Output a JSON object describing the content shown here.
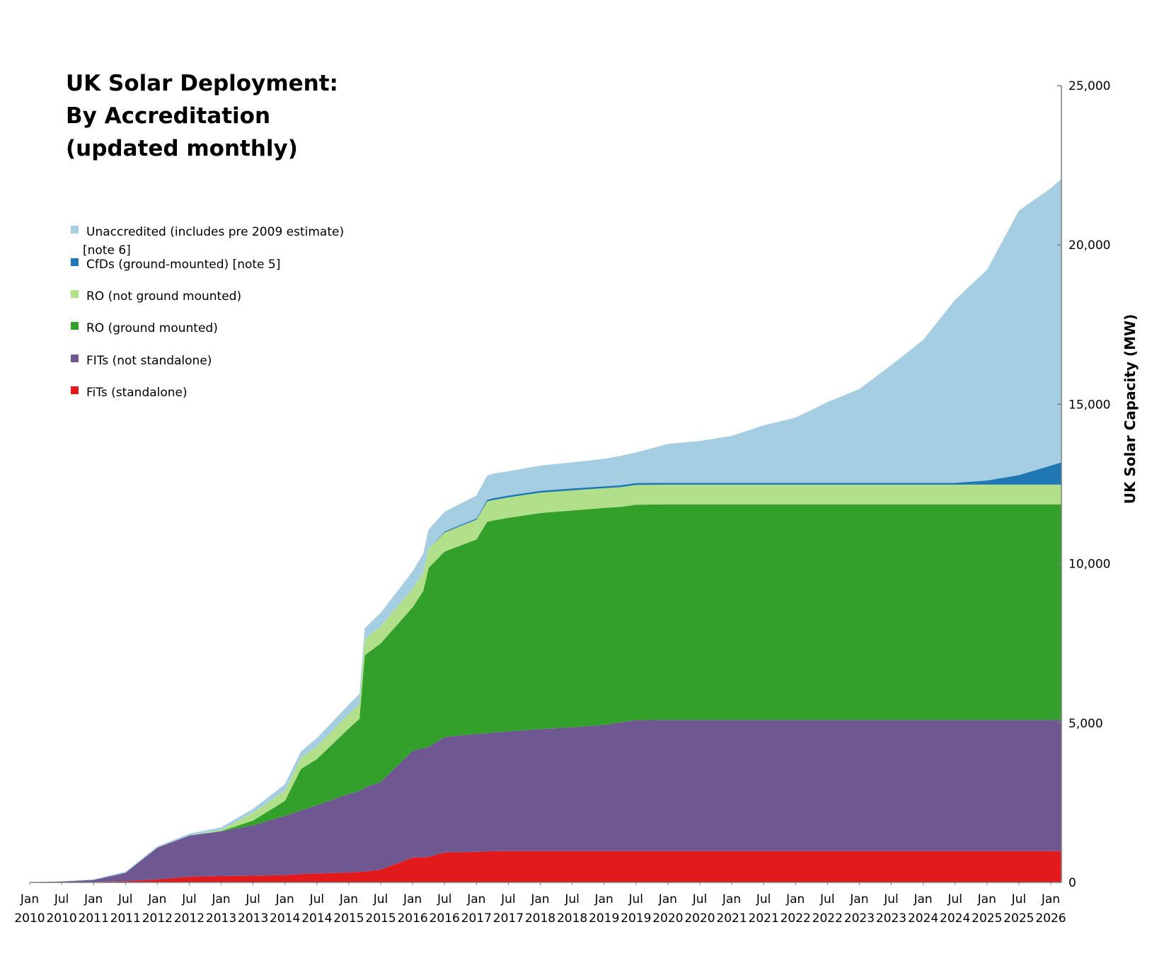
{
  "chart_data": {
    "type": "area",
    "stacked": true,
    "title": [
      "UK Solar Deployment:",
      "By Accreditation",
      "(updated monthly)"
    ],
    "ylabel": "UK Solar Capacity (MW)",
    "xlabel": "",
    "ylim": [
      0,
      25000
    ],
    "y_axis_position": "right",
    "y_ticks": [
      0,
      5000,
      10000,
      15000,
      20000,
      25000
    ],
    "y_tick_labels": [
      "0",
      "5,000",
      "10,000",
      "15,000",
      "20,000",
      "25,000"
    ],
    "x_ticks": [
      {
        "month": "Jan",
        "year": "2010"
      },
      {
        "month": "Jul",
        "year": "2010"
      },
      {
        "month": "Jan",
        "year": "2011"
      },
      {
        "month": "Jul",
        "year": "2011"
      },
      {
        "month": "Jan",
        "year": "2012"
      },
      {
        "month": "Jul",
        "year": "2012"
      },
      {
        "month": "Jan",
        "year": "2013"
      },
      {
        "month": "Jul",
        "year": "2013"
      },
      {
        "month": "Jan",
        "year": "2014"
      },
      {
        "month": "Jul",
        "year": "2014"
      },
      {
        "month": "Jan",
        "year": "2015"
      },
      {
        "month": "Jul",
        "year": "2015"
      },
      {
        "month": "Jan",
        "year": "2016"
      },
      {
        "month": "Jul",
        "year": "2016"
      },
      {
        "month": "Jan",
        "year": "2017"
      },
      {
        "month": "Jul",
        "year": "2017"
      },
      {
        "month": "Jan",
        "year": "2018"
      },
      {
        "month": "Jul",
        "year": "2018"
      },
      {
        "month": "Jan",
        "year": "2019"
      },
      {
        "month": "Jul",
        "year": "2019"
      },
      {
        "month": "Jan",
        "year": "2020"
      },
      {
        "month": "Jul",
        "year": "2020"
      },
      {
        "month": "Jan",
        "year": "2021"
      },
      {
        "month": "Jul",
        "year": "2021"
      },
      {
        "month": "Jan",
        "year": "2022"
      },
      {
        "month": "Jul",
        "year": "2022"
      },
      {
        "month": "Jan",
        "year": "2023"
      },
      {
        "month": "Jul",
        "year": "2023"
      },
      {
        "month": "Jan",
        "year": "2024"
      },
      {
        "month": "Jul",
        "year": "2024"
      },
      {
        "month": "Jan",
        "year": "2025"
      },
      {
        "month": "Jul",
        "year": "2025"
      },
      {
        "month": "Jan",
        "year": "2026"
      }
    ],
    "x": [
      "2010-01",
      "2010-07",
      "2011-01",
      "2011-07",
      "2012-01",
      "2012-07",
      "2013-01",
      "2013-07",
      "2014-01",
      "2014-04",
      "2014-07",
      "2015-01",
      "2015-03",
      "2015-04",
      "2015-07",
      "2016-01",
      "2016-03",
      "2016-04",
      "2016-07",
      "2017-01",
      "2017-03",
      "2017-04",
      "2017-07",
      "2018-01",
      "2018-07",
      "2019-01",
      "2019-04",
      "2019-07",
      "2020-01",
      "2020-07",
      "2021-01",
      "2021-07",
      "2022-01",
      "2022-07",
      "2023-01",
      "2023-07",
      "2024-01",
      "2024-07",
      "2025-01",
      "2025-07",
      "2026-01",
      "2026-03"
    ],
    "series": [
      {
        "name": "FiTs (standalone)",
        "color": "#e31a1c",
        "values": [
          0,
          0,
          10,
          40,
          90,
          180,
          200,
          210,
          230,
          260,
          280,
          310,
          330,
          340,
          400,
          780,
          790,
          800,
          940,
          960,
          970,
          980,
          980,
          980,
          980,
          980,
          980,
          980,
          980,
          980,
          980,
          980,
          980,
          980,
          980,
          980,
          980,
          980,
          980,
          980,
          980,
          980
        ]
      },
      {
        "name": "FITs (not standalone)",
        "color": "#6f5891",
        "values": [
          5,
          30,
          70,
          260,
          1000,
          1290,
          1400,
          1580,
          1860,
          2000,
          2140,
          2470,
          2530,
          2640,
          2750,
          3350,
          3420,
          3450,
          3620,
          3700,
          3710,
          3720,
          3760,
          3830,
          3890,
          3960,
          4040,
          4110,
          4120,
          4120,
          4120,
          4120,
          4120,
          4120,
          4120,
          4120,
          4120,
          4120,
          4120,
          4120,
          4120,
          4120
        ]
      },
      {
        "name": "RO (ground mounted)",
        "color": "#33a02c",
        "values": [
          0,
          0,
          0,
          0,
          0,
          0,
          10,
          150,
          470,
          1300,
          1450,
          2050,
          2270,
          4150,
          4350,
          4500,
          4930,
          5620,
          5820,
          6100,
          6630,
          6650,
          6700,
          6780,
          6800,
          6810,
          6760,
          6760,
          6760,
          6760,
          6760,
          6760,
          6760,
          6760,
          6760,
          6760,
          6760,
          6760,
          6760,
          6760,
          6760,
          6760
        ]
      },
      {
        "name": "RO (not ground mounted)",
        "color": "#b2df8a",
        "values": [
          0,
          0,
          0,
          0,
          0,
          0,
          40,
          250,
          320,
          350,
          400,
          450,
          460,
          500,
          540,
          580,
          580,
          600,
          600,
          620,
          640,
          640,
          640,
          640,
          630,
          620,
          620,
          620,
          620,
          620,
          620,
          620,
          620,
          620,
          620,
          620,
          620,
          620,
          620,
          620,
          620,
          620
        ]
      },
      {
        "name": "CfDs (ground-mounted) [note 5]",
        "color": "#1f78b4",
        "values": [
          0,
          0,
          0,
          0,
          0,
          0,
          0,
          0,
          0,
          0,
          0,
          0,
          0,
          0,
          0,
          0,
          0,
          0,
          30,
          40,
          50,
          60,
          60,
          60,
          60,
          60,
          60,
          60,
          60,
          60,
          60,
          60,
          60,
          60,
          60,
          60,
          60,
          60,
          130,
          300,
          600,
          700
        ]
      },
      {
        "name": "Unaccredited (includes pre 2009 estimate) [note 6]",
        "color": "#a6cee3",
        "values": [
          0,
          0,
          10,
          40,
          40,
          60,
          80,
          120,
          200,
          200,
          260,
          300,
          330,
          350,
          420,
          550,
          600,
          600,
          620,
          720,
          760,
          770,
          760,
          790,
          820,
          860,
          920,
          960,
          1220,
          1310,
          1470,
          1800,
          2040,
          2530,
          2940,
          3690,
          4480,
          5740,
          6610,
          8300,
          8700,
          8900
        ]
      }
    ],
    "legend": {
      "placement": "top-left",
      "order": [
        5,
        4,
        3,
        2,
        1,
        0
      ],
      "entries": [
        {
          "lines": [
            "Unaccredited (includes pre 2009 estimate)",
            "[note 6]"
          ],
          "color": "#a6cee3"
        },
        {
          "lines": [
            "CfDs (ground-mounted) [note 5]"
          ],
          "color": "#1f78b4"
        },
        {
          "lines": [
            "RO (not ground mounted)"
          ],
          "color": "#b2df8a"
        },
        {
          "lines": [
            "RO (ground mounted)"
          ],
          "color": "#33a02c"
        },
        {
          "lines": [
            "FITs (not standalone)"
          ],
          "color": "#6f5891"
        },
        {
          "lines": [
            "FiTs (standalone)"
          ],
          "color": "#e31a1c"
        }
      ]
    },
    "grid": false
  }
}
